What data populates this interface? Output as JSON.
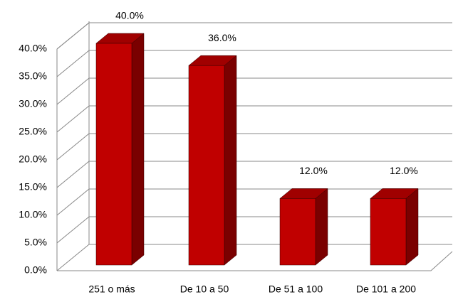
{
  "chart_data": {
    "type": "bar3d",
    "categories": [
      "251 o  más",
      "De 10 a 50",
      "De 51 a 100",
      "De 101 a 200"
    ],
    "values": [
      40,
      36,
      12,
      12
    ],
    "value_labels": [
      "40.0%",
      "36.0%",
      "12.0%",
      "12.0%"
    ],
    "color": "#c00000",
    "ylim": [
      0,
      40
    ],
    "yticks": [
      {
        "value": 0,
        "label": "0.0%"
      },
      {
        "value": 5,
        "label": "5.0%"
      },
      {
        "value": 10,
        "label": "10.0%"
      },
      {
        "value": 15,
        "label": "15.0%"
      },
      {
        "value": 20,
        "label": "20.0%"
      },
      {
        "value": 25,
        "label": "25.0%"
      },
      {
        "value": 30,
        "label": "30.0%"
      },
      {
        "value": 35,
        "label": "35.0%"
      },
      {
        "value": 40,
        "label": "40.0%"
      }
    ],
    "grid": true
  }
}
